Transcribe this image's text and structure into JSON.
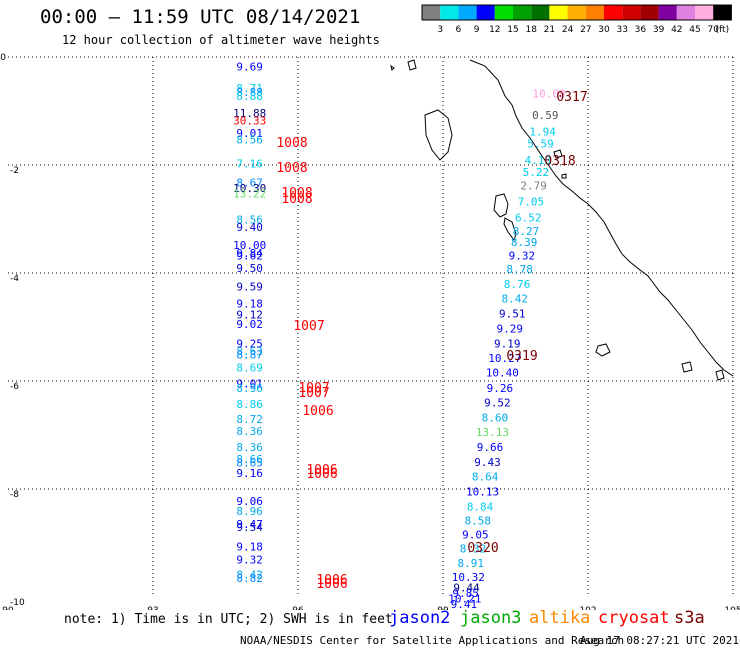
{
  "header": {
    "title": "00:00 – 11:59 UTC 08/14/2021",
    "subtitle": "12 hour collection of altimeter wave heights"
  },
  "legend": {
    "colors": [
      "#808080",
      "#00e8e8",
      "#00aaff",
      "#0000ff",
      "#00dd00",
      "#00a000",
      "#007000",
      "#ffff00",
      "#ffb000",
      "#ff8000",
      "#ff0000",
      "#d00000",
      "#a00000",
      "#8000a0",
      "#e080e0",
      "#ffb0e0",
      "#000000"
    ],
    "labels": [
      "3",
      "6",
      "9",
      "12",
      "15",
      "18",
      "21",
      "24",
      "27",
      "30",
      "33",
      "36",
      "39",
      "42",
      "45",
      "70",
      "(ft)"
    ]
  },
  "axes": {
    "x_ticks": [
      "90",
      "93",
      "96",
      "99",
      "102",
      "105"
    ],
    "y_ticks": [
      "0",
      "-2",
      "-4",
      "-6",
      "-8",
      "-10"
    ],
    "x_range": [
      90,
      105
    ],
    "y_range": [
      0,
      -10
    ]
  },
  "chart_data": {
    "type": "scatter",
    "values": [
      {
        "lon": 95.0,
        "lat": -0.25,
        "v": "9.69",
        "c": "#0000ff"
      },
      {
        "lon": 95.0,
        "lat": -0.65,
        "v": "8.71",
        "c": "#00ccee"
      },
      {
        "lon": 95.0,
        "lat": -0.72,
        "v": "8.88",
        "c": "#0088ff"
      },
      {
        "lon": 95.0,
        "lat": -0.8,
        "v": "8.88",
        "c": "#00ccee"
      },
      {
        "lon": 95.0,
        "lat": -1.11,
        "v": "11.88",
        "c": "#00007a"
      },
      {
        "lon": 95.0,
        "lat": -1.25,
        "v": "30.33",
        "c": "#ff0000"
      },
      {
        "lon": 95.0,
        "lat": -1.48,
        "v": "9.01",
        "c": "#0000ff"
      },
      {
        "lon": 95.0,
        "lat": -1.6,
        "v": "8.56",
        "c": "#00aaee"
      },
      {
        "lon": 95.0,
        "lat": -2.05,
        "v": "7.16",
        "c": "#00ccee"
      },
      {
        "lon": 95.0,
        "lat": -2.4,
        "v": "8.67",
        "c": "#0088ff"
      },
      {
        "lon": 95.0,
        "lat": -2.5,
        "v": "10.30",
        "c": "#00007a"
      },
      {
        "lon": 95.0,
        "lat": -2.6,
        "v": "13.22",
        "c": "#66dd66"
      },
      {
        "lon": 95.0,
        "lat": -3.08,
        "v": "8.56",
        "c": "#00aaee"
      },
      {
        "lon": 95.0,
        "lat": -3.22,
        "v": "9.40",
        "c": "#0000cc"
      },
      {
        "lon": 95.0,
        "lat": -3.56,
        "v": "10.00",
        "c": "#0000ff"
      },
      {
        "lon": 95.0,
        "lat": -3.7,
        "v": "9.84",
        "c": "#0000ff"
      },
      {
        "lon": 95.0,
        "lat": -3.75,
        "v": "9.62",
        "c": "#0000ff"
      },
      {
        "lon": 95.0,
        "lat": -3.98,
        "v": "9.50",
        "c": "#0000cc"
      },
      {
        "lon": 95.0,
        "lat": -4.32,
        "v": "9.59",
        "c": "#0000cc"
      },
      {
        "lon": 95.0,
        "lat": -4.64,
        "v": "9.18",
        "c": "#0000ff"
      },
      {
        "lon": 95.0,
        "lat": -4.84,
        "v": "9.12",
        "c": "#0000cc"
      },
      {
        "lon": 95.0,
        "lat": -5.02,
        "v": "9.02",
        "c": "#0000ff"
      },
      {
        "lon": 95.0,
        "lat": -5.38,
        "v": "9.25",
        "c": "#0000ff"
      },
      {
        "lon": 95.0,
        "lat": -5.52,
        "v": "8.63",
        "c": "#00aaee"
      },
      {
        "lon": 95.0,
        "lat": -5.58,
        "v": "8.87",
        "c": "#0088ff"
      },
      {
        "lon": 95.0,
        "lat": -5.82,
        "v": "8.69",
        "c": "#00ccee"
      },
      {
        "lon": 95.0,
        "lat": -6.12,
        "v": "9.01",
        "c": "#0000ff"
      },
      {
        "lon": 95.0,
        "lat": -6.2,
        "v": "8.96",
        "c": "#00aaee"
      },
      {
        "lon": 95.0,
        "lat": -6.5,
        "v": "8.86",
        "c": "#00ccee"
      },
      {
        "lon": 95.0,
        "lat": -6.78,
        "v": "8.72",
        "c": "#00aaee"
      },
      {
        "lon": 95.0,
        "lat": -7.0,
        "v": "8.36",
        "c": "#00aaee"
      },
      {
        "lon": 95.0,
        "lat": -7.3,
        "v": "8.36",
        "c": "#00aaee"
      },
      {
        "lon": 95.0,
        "lat": -7.52,
        "v": "8.66",
        "c": "#00aaee"
      },
      {
        "lon": 95.0,
        "lat": -7.58,
        "v": "8.65",
        "c": "#0088ff"
      },
      {
        "lon": 95.0,
        "lat": -7.78,
        "v": "9.16",
        "c": "#0000ff"
      },
      {
        "lon": 95.0,
        "lat": -8.3,
        "v": "9.06",
        "c": "#0000ff"
      },
      {
        "lon": 95.0,
        "lat": -8.48,
        "v": "8.96",
        "c": "#00aaee"
      },
      {
        "lon": 95.0,
        "lat": -8.72,
        "v": "9.47",
        "c": "#0000ff"
      },
      {
        "lon": 95.0,
        "lat": -8.78,
        "v": "9.54",
        "c": "#0000cc"
      },
      {
        "lon": 95.0,
        "lat": -9.14,
        "v": "9.18",
        "c": "#0000ff"
      },
      {
        "lon": 95.0,
        "lat": -9.38,
        "v": "9.32",
        "c": "#0000ff"
      },
      {
        "lon": 95.0,
        "lat": -9.66,
        "v": "8.42",
        "c": "#00aaee"
      },
      {
        "lon": 95.0,
        "lat": -9.72,
        "v": "8.82",
        "c": "#0088ff"
      },
      {
        "lon": 100.4,
        "lat": -0.75,
        "v": "10.09",
        "c": "#ff99dd"
      },
      {
        "lon": 100.4,
        "lat": -1.15,
        "v": "0.59",
        "c": "#555555"
      },
      {
        "lon": 100.4,
        "lat": -1.45,
        "v": "1.94",
        "c": "#00ccee"
      },
      {
        "lon": 100.4,
        "lat": -1.68,
        "v": "5.59",
        "c": "#00ccee"
      },
      {
        "lon": 100.4,
        "lat": -1.98,
        "v": "4.13",
        "c": "#00ccee"
      },
      {
        "lon": 100.4,
        "lat": -2.2,
        "v": "5.22",
        "c": "#00ccee"
      },
      {
        "lon": 100.4,
        "lat": -2.45,
        "v": "2.79",
        "c": "#808080"
      },
      {
        "lon": 100.4,
        "lat": -2.75,
        "v": "7.05",
        "c": "#00ccee"
      },
      {
        "lon": 100.4,
        "lat": -3.05,
        "v": "6.52",
        "c": "#00ccee"
      },
      {
        "lon": 100.4,
        "lat": -3.3,
        "v": "8.27",
        "c": "#00aaee"
      },
      {
        "lon": 100.4,
        "lat": -3.5,
        "v": "8.39",
        "c": "#00aaee"
      },
      {
        "lon": 100.4,
        "lat": -3.75,
        "v": "9.32",
        "c": "#0000ff"
      },
      {
        "lon": 100.4,
        "lat": -4.0,
        "v": "8.78",
        "c": "#00aaee"
      },
      {
        "lon": 100.4,
        "lat": -4.28,
        "v": "8.76",
        "c": "#00ccee"
      },
      {
        "lon": 100.4,
        "lat": -4.55,
        "v": "8.42",
        "c": "#00aaee"
      },
      {
        "lon": 100.4,
        "lat": -4.82,
        "v": "9.51",
        "c": "#0000cc"
      },
      {
        "lon": 100.4,
        "lat": -5.1,
        "v": "9.29",
        "c": "#0000ff"
      },
      {
        "lon": 100.4,
        "lat": -5.38,
        "v": "9.19",
        "c": "#0000cc"
      },
      {
        "lon": 100.4,
        "lat": -5.65,
        "v": "10.27",
        "c": "#0000ff"
      },
      {
        "lon": 100.4,
        "lat": -5.92,
        "v": "10.40",
        "c": "#0000ff"
      },
      {
        "lon": 100.4,
        "lat": -6.2,
        "v": "9.26",
        "c": "#0000ff"
      },
      {
        "lon": 100.4,
        "lat": -6.47,
        "v": "9.52",
        "c": "#0000cc"
      },
      {
        "lon": 100.4,
        "lat": -6.75,
        "v": "8.60",
        "c": "#00aaee"
      },
      {
        "lon": 100.4,
        "lat": -7.02,
        "v": "13.13",
        "c": "#66dd66"
      },
      {
        "lon": 100.4,
        "lat": -7.3,
        "v": "9.66",
        "c": "#0000ff"
      },
      {
        "lon": 100.4,
        "lat": -7.57,
        "v": "9.43",
        "c": "#0000cc"
      },
      {
        "lon": 100.4,
        "lat": -7.84,
        "v": "8.64",
        "c": "#00aaee"
      },
      {
        "lon": 100.4,
        "lat": -8.12,
        "v": "10.13",
        "c": "#0000ff"
      },
      {
        "lon": 100.4,
        "lat": -8.4,
        "v": "8.84",
        "c": "#00ccee"
      },
      {
        "lon": 100.4,
        "lat": -8.66,
        "v": "8.58",
        "c": "#00aaee"
      },
      {
        "lon": 100.4,
        "lat": -8.92,
        "v": "9.05",
        "c": "#0000ff"
      },
      {
        "lon": 100.4,
        "lat": -9.18,
        "v": "8.32",
        "c": "#00aaee"
      },
      {
        "lon": 100.4,
        "lat": -9.44,
        "v": "8.91",
        "c": "#00aaee"
      },
      {
        "lon": 100.4,
        "lat": -9.7,
        "v": "10.32",
        "c": "#0000ff"
      },
      {
        "lon": 100.4,
        "lat": -9.9,
        "v": "9.44",
        "c": "#00007a"
      },
      {
        "lon": 100.4,
        "lat": -10.0,
        "v": "9.85",
        "c": "#0000ff"
      },
      {
        "lon": 100.4,
        "lat": -10.1,
        "v": "10.21",
        "c": "#0000ff"
      },
      {
        "lon": 100.4,
        "lat": -10.2,
        "v": "9.41",
        "c": "#0000ff"
      }
    ],
    "pass_labels": [
      {
        "text": "1008",
        "c": "#ff0000"
      },
      {
        "text": "1008",
        "c": "#ff0000"
      },
      {
        "text": "1008",
        "c": "#ff0000"
      },
      {
        "text": "1008",
        "c": "#ff0000"
      },
      {
        "text": "1007",
        "c": "#ff0000"
      },
      {
        "text": "1007",
        "c": "#ff0000"
      },
      {
        "text": "1007",
        "c": "#ff0000"
      },
      {
        "text": "1006",
        "c": "#ff0000"
      },
      {
        "text": "1006",
        "c": "#ff0000"
      },
      {
        "text": "1006",
        "c": "#ff0000"
      },
      {
        "text": "1006",
        "c": "#ff0000"
      },
      {
        "text": "1006",
        "c": "#ff0000"
      },
      {
        "text": "0317",
        "c": "#7a0000"
      },
      {
        "text": "0318",
        "c": "#7a0000"
      },
      {
        "text": "0319",
        "c": "#7a0000"
      },
      {
        "text": "0320",
        "c": "#7a0000"
      }
    ]
  },
  "footer": {
    "note": "note: 1) Time is in UTC; 2) SWH is in feet",
    "satellites": [
      {
        "name": "jason2",
        "color": "#0000ff"
      },
      {
        "name": "jason3",
        "color": "#00aa00"
      },
      {
        "name": "altika",
        "color": "#ff8800"
      },
      {
        "name": "cryosat",
        "color": "#ff0000"
      },
      {
        "name": "s3a",
        "color": "#7a0000"
      }
    ],
    "credit": "NOAA/NESDIS Center for Satellite Applications and Research",
    "stamp": "Aug 17 08:27:21 UTC 2021"
  }
}
